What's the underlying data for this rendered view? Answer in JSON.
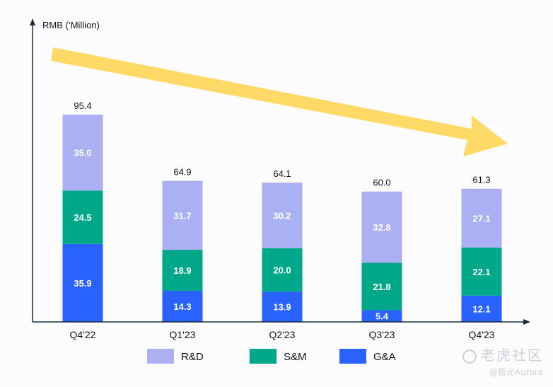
{
  "chart_data": {
    "type": "bar",
    "stacked": true,
    "title": "",
    "ylabel": "RMB (‘Million)",
    "xlabel": "",
    "categories": [
      "Q4'22",
      "Q1'23",
      "Q2'23",
      "Q3'23",
      "Q4'23"
    ],
    "series": [
      {
        "name": "G&A",
        "color": "#2962ff",
        "values": [
          35.9,
          14.3,
          13.9,
          5.4,
          12.1
        ]
      },
      {
        "name": "S&M",
        "color": "#00a88a",
        "values": [
          24.5,
          18.9,
          20.0,
          21.8,
          22.1
        ]
      },
      {
        "name": "R&D",
        "color": "#aab0f2",
        "values": [
          35.0,
          31.7,
          30.2,
          32.8,
          27.1
        ]
      }
    ],
    "totals": [
      "95.4",
      "64.9",
      "64.1",
      "60.0",
      "61.3"
    ],
    "segment_labels": [
      [
        "35.9",
        "14.3",
        "13.9",
        "5.4",
        "12.1"
      ],
      [
        "24.5",
        "18.9",
        "20.0",
        "21.8",
        "22.1"
      ],
      [
        "35.0",
        "31.7",
        "30.2",
        "32.8",
        "27.1"
      ]
    ],
    "legend": [
      "R&D",
      "S&M",
      "G&A"
    ],
    "legend_position": "bottom",
    "ylim": [
      0,
      115
    ],
    "grid": false,
    "annotation": "yellow downward trend arrow"
  },
  "colors": {
    "arrow": "#ffd966",
    "axis": "#1a2a3a"
  },
  "watermark": {
    "line1": "老虎社区",
    "line2": "@极光Aurora"
  }
}
